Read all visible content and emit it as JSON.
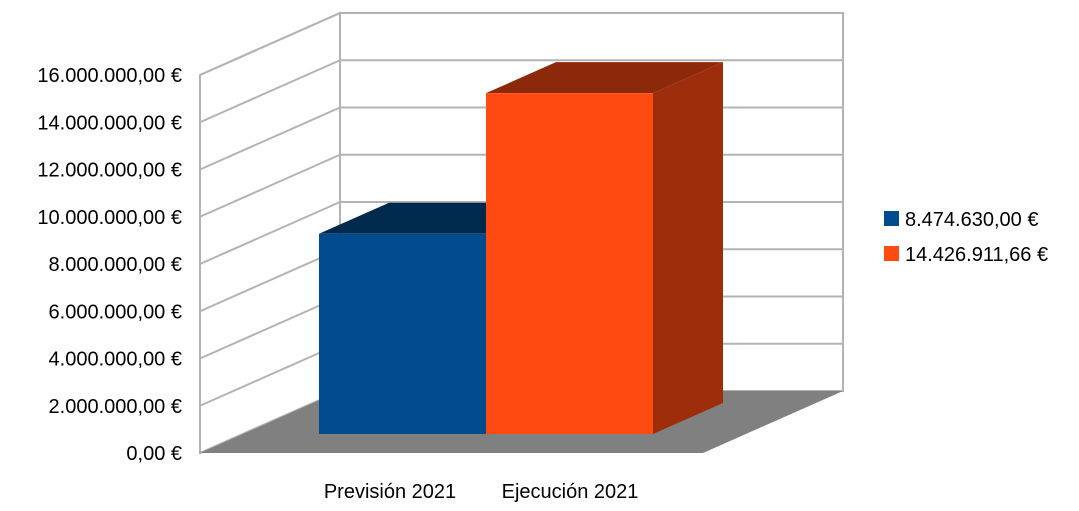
{
  "chart_data": {
    "type": "bar",
    "subtype": "3d-column",
    "title": "",
    "xlabel": "",
    "ylabel": "",
    "categories": [
      "Previsión 2021",
      "Ejecución 2021"
    ],
    "values": [
      8474630.0,
      14426911.66
    ],
    "colors": [
      "#004b8d",
      "#ff4a12"
    ],
    "ylim": [
      0,
      16000000
    ],
    "ytick_step": 2000000,
    "ytick_labels": [
      "0,00 €",
      "2.000.000,00 €",
      "4.000.000,00 €",
      "6.000.000,00 €",
      "8.000.000,00 €",
      "10.000.000,00 €",
      "12.000.000,00 €",
      "14.000.000,00 €",
      "16.000.000,00 €"
    ],
    "legend": {
      "position": "right",
      "entries": [
        {
          "label": "8.474.630,00 €",
          "color": "#004b8d"
        },
        {
          "label": "14.426.911,66 €",
          "color": "#ff4a12"
        }
      ]
    },
    "grid": true,
    "floor_color": "#808080"
  }
}
